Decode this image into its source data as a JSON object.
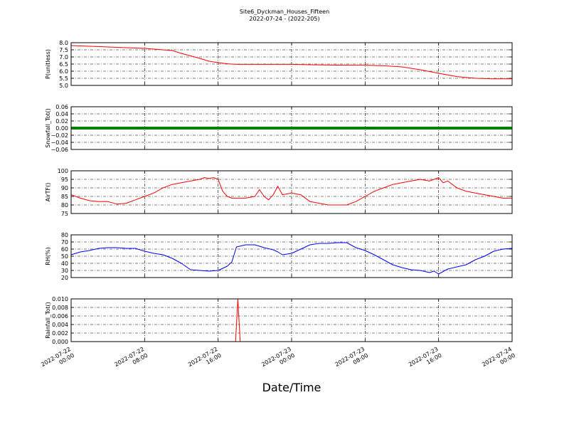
{
  "figure": {
    "title_line1": "Site6_Dyckman_Houses_Fifteen",
    "title_line2": "2022-07-24 - (2022-205)",
    "xlabel": "Date/Time"
  },
  "chart_data": {
    "type": "line",
    "grid": true,
    "x_range": [
      "2022-07-22 00:00",
      "2022-07-24 00:00"
    ],
    "x_ticks": [
      {
        "line1": "2022-07-22",
        "line2": "00:00"
      },
      {
        "line1": "2022-07-22",
        "line2": "08:00"
      },
      {
        "line1": "2022-07-22",
        "line2": "16:00"
      },
      {
        "line1": "2022-07-23",
        "line2": "00:00"
      },
      {
        "line1": "2022-07-23",
        "line2": "08:00"
      },
      {
        "line1": "2022-07-23",
        "line2": "16:00"
      },
      {
        "line1": "2022-07-24",
        "line2": "00:00"
      }
    ],
    "panels": [
      {
        "ylabel": "P(unitless)",
        "ylim": [
          5.0,
          8.0
        ],
        "yticks": [
          "5.0",
          "5.5",
          "6.0",
          "6.5",
          "7.0",
          "7.5",
          "8.0"
        ],
        "color": "#ff0000",
        "hours": [
          0,
          2,
          4,
          6,
          8,
          10,
          11,
          12,
          14,
          15,
          16,
          17,
          18,
          20,
          22,
          24,
          26,
          28,
          30,
          32,
          34,
          36,
          38,
          40,
          42,
          44,
          46,
          48
        ],
        "values": [
          7.8,
          7.75,
          7.7,
          7.65,
          7.6,
          7.5,
          7.45,
          7.25,
          6.9,
          6.7,
          6.6,
          6.52,
          6.48,
          6.48,
          6.48,
          6.48,
          6.45,
          6.43,
          6.42,
          6.42,
          6.38,
          6.3,
          6.1,
          5.85,
          5.62,
          5.5,
          5.46,
          5.46
        ]
      },
      {
        "ylabel": "Snowfall_Tot()",
        "ylim": [
          -0.06,
          0.06
        ],
        "yticks": [
          "−0.06",
          "−0.04",
          "−0.02",
          "0.00",
          "0.02",
          "0.04",
          "0.06"
        ],
        "color": "#008000",
        "hours": [
          0,
          48
        ],
        "values": [
          0,
          0
        ]
      },
      {
        "ylabel": "AirTF()",
        "ylim": [
          75,
          100
        ],
        "yticks": [
          "75",
          "80",
          "85",
          "90",
          "95",
          "100"
        ],
        "color": "#ff0000",
        "hours": [
          0,
          1,
          2,
          3,
          4,
          5,
          6,
          7,
          8,
          9,
          10,
          11,
          12,
          13,
          14,
          14.5,
          15,
          15.5,
          16,
          16.5,
          17,
          17.5,
          18,
          19,
          20,
          20.5,
          21,
          21.5,
          22,
          22.5,
          23,
          24,
          25,
          26,
          27,
          28,
          29,
          30,
          31,
          32,
          33,
          34,
          35,
          36,
          37,
          38,
          39,
          40,
          40.5,
          41,
          41.5,
          42,
          43,
          44,
          45,
          46,
          47,
          48
        ],
        "values": [
          86,
          84,
          82.5,
          82,
          82,
          80.5,
          81,
          83,
          85,
          87,
          90,
          92,
          93,
          94,
          95,
          96,
          95.5,
          96,
          95,
          88,
          85,
          84,
          84,
          84,
          85,
          89,
          85,
          83,
          86,
          91,
          86,
          87,
          86,
          82,
          81,
          80,
          80,
          80,
          82,
          85,
          88,
          90,
          92,
          93,
          94,
          95,
          94,
          96,
          93,
          94,
          92,
          90,
          88,
          87,
          86,
          85,
          84,
          84
        ]
      },
      {
        "ylabel": "RH(%)",
        "ylim": [
          20,
          80
        ],
        "yticks": [
          "20",
          "30",
          "40",
          "50",
          "60",
          "70",
          "80"
        ],
        "color": "#0000ff",
        "hours": [
          0,
          1,
          2,
          3,
          4,
          5,
          6,
          7,
          8,
          9,
          10,
          11,
          12,
          13,
          14,
          15,
          16,
          16.5,
          17,
          17.5,
          18,
          19,
          20,
          21,
          22,
          22.5,
          23,
          24,
          25,
          26,
          27,
          28,
          29,
          30,
          31,
          32,
          33,
          34,
          35,
          36,
          37,
          38,
          39,
          39.5,
          40,
          41,
          42,
          43,
          44,
          45,
          46,
          47,
          48
        ],
        "values": [
          52,
          56,
          58,
          61,
          62,
          62,
          61,
          61,
          57,
          54,
          52,
          47,
          40,
          31,
          30,
          29,
          30,
          33,
          36,
          42,
          63,
          66,
          66,
          62,
          59,
          56,
          52,
          54,
          60,
          66,
          68,
          68,
          69,
          69,
          62,
          58,
          52,
          45,
          38,
          34,
          31,
          30,
          27,
          29,
          25,
          32,
          35,
          38,
          45,
          50,
          57,
          60,
          61
        ]
      },
      {
        "ylabel": "Rainfall_Tot()",
        "ylim": [
          0.0,
          0.01
        ],
        "yticks": [
          "0.000",
          "0.002",
          "0.004",
          "0.006",
          "0.008",
          "0.010"
        ],
        "color": "#ff0000",
        "hours": [
          0,
          17.9,
          18.15,
          18.4,
          48
        ],
        "values": [
          0,
          0,
          0.01,
          0,
          0
        ]
      }
    ]
  }
}
